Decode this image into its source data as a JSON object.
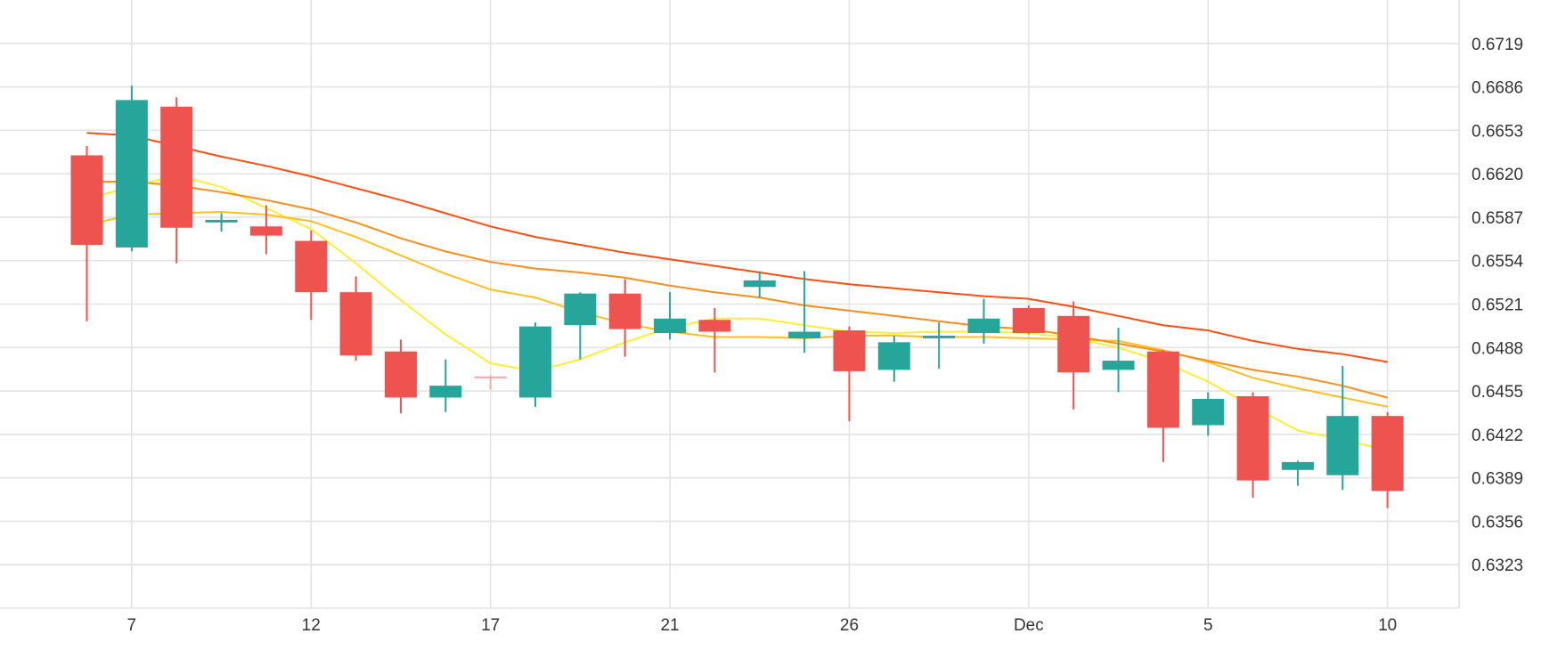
{
  "chart_data": {
    "type": "candlestick",
    "title": "",
    "xlabel": "",
    "ylabel": "",
    "ylim": [
      0.629,
      0.6752
    ],
    "y_ticks": [
      0.6323,
      0.6356,
      0.6389,
      0.6422,
      0.6455,
      0.6488,
      0.6521,
      0.6554,
      0.6587,
      0.662,
      0.6653,
      0.6686,
      0.6719
    ],
    "y_tick_labels": [
      "0.6323",
      "0.6356",
      "0.6389",
      "0.6422",
      "0.6455",
      "0.6488",
      "0.6521",
      "0.6554",
      "0.6587",
      "0.6620",
      "0.6653",
      "0.6686",
      "0.6719"
    ],
    "x_ticks": [
      {
        "label": "7",
        "index": 1
      },
      {
        "label": "12",
        "index": 5
      },
      {
        "label": "17",
        "index": 9
      },
      {
        "label": "21",
        "index": 13
      },
      {
        "label": "26",
        "index": 17
      },
      {
        "label": "Dec",
        "index": 21
      },
      {
        "label": "5",
        "index": 25
      },
      {
        "label": "10",
        "index": 29
      }
    ],
    "grid": true,
    "colors": {
      "up": "#26a69a",
      "down": "#ef5350",
      "doji": "#f4a7a6"
    },
    "candles": [
      {
        "o": 0.6634,
        "h": 0.6641,
        "l": 0.6508,
        "c": 0.6566
      },
      {
        "o": 0.6564,
        "h": 0.6687,
        "l": 0.6561,
        "c": 0.6676
      },
      {
        "o": 0.6671,
        "h": 0.6678,
        "l": 0.6552,
        "c": 0.6579
      },
      {
        "o": 0.6583,
        "h": 0.659,
        "l": 0.6576,
        "c": 0.6585
      },
      {
        "o": 0.658,
        "h": 0.6596,
        "l": 0.6559,
        "c": 0.6573
      },
      {
        "o": 0.6569,
        "h": 0.6577,
        "l": 0.6509,
        "c": 0.653
      },
      {
        "o": 0.653,
        "h": 0.6542,
        "l": 0.6478,
        "c": 0.6482
      },
      {
        "o": 0.6485,
        "h": 0.6494,
        "l": 0.6438,
        "c": 0.645
      },
      {
        "o": 0.645,
        "h": 0.6479,
        "l": 0.6439,
        "c": 0.6459
      },
      {
        "o": 0.6466,
        "h": 0.6467,
        "l": 0.6456,
        "c": 0.6466
      },
      {
        "o": 0.645,
        "h": 0.6507,
        "l": 0.6443,
        "c": 0.6504
      },
      {
        "o": 0.6505,
        "h": 0.653,
        "l": 0.6479,
        "c": 0.6529
      },
      {
        "o": 0.6529,
        "h": 0.654,
        "l": 0.6481,
        "c": 0.6502
      },
      {
        "o": 0.6499,
        "h": 0.653,
        "l": 0.6494,
        "c": 0.651
      },
      {
        "o": 0.6509,
        "h": 0.6518,
        "l": 0.6469,
        "c": 0.65
      },
      {
        "o": 0.6534,
        "h": 0.6546,
        "l": 0.6526,
        "c": 0.6539
      },
      {
        "o": 0.6495,
        "h": 0.6546,
        "l": 0.6484,
        "c": 0.65
      },
      {
        "o": 0.6501,
        "h": 0.6504,
        "l": 0.6432,
        "c": 0.647
      },
      {
        "o": 0.6471,
        "h": 0.6497,
        "l": 0.6462,
        "c": 0.6492
      },
      {
        "o": 0.6495,
        "h": 0.6507,
        "l": 0.6472,
        "c": 0.6497
      },
      {
        "o": 0.6499,
        "h": 0.6525,
        "l": 0.6491,
        "c": 0.651
      },
      {
        "o": 0.6518,
        "h": 0.652,
        "l": 0.6498,
        "c": 0.6499
      },
      {
        "o": 0.6512,
        "h": 0.6523,
        "l": 0.6441,
        "c": 0.6469
      },
      {
        "o": 0.6471,
        "h": 0.6503,
        "l": 0.6454,
        "c": 0.6478
      },
      {
        "o": 0.6485,
        "h": 0.6486,
        "l": 0.6401,
        "c": 0.6427
      },
      {
        "o": 0.6429,
        "h": 0.6454,
        "l": 0.6421,
        "c": 0.6449
      },
      {
        "o": 0.6451,
        "h": 0.6454,
        "l": 0.6374,
        "c": 0.6387
      },
      {
        "o": 0.6395,
        "h": 0.6402,
        "l": 0.6383,
        "c": 0.6401
      },
      {
        "o": 0.6391,
        "h": 0.6474,
        "l": 0.638,
        "c": 0.6436
      },
      {
        "o": 0.6436,
        "h": 0.6439,
        "l": 0.6366,
        "c": 0.6379
      }
    ],
    "moving_averages": [
      {
        "color": "#ffee33",
        "start": 0,
        "values": [
          0.6601,
          0.661,
          0.6619,
          0.661,
          0.6594,
          0.6578,
          0.6552,
          0.6524,
          0.6498,
          0.6476,
          0.647,
          0.6479,
          0.6492,
          0.6503,
          0.651,
          0.651,
          0.6505,
          0.65,
          0.6499,
          0.65,
          0.65,
          0.6499,
          0.6495,
          0.6488,
          0.6477,
          0.6462,
          0.6443,
          0.6425,
          0.6418,
          0.641
        ]
      },
      {
        "color": "#ffbf1f",
        "start": 0,
        "values": [
          0.6581,
          0.6589,
          0.659,
          0.6591,
          0.6589,
          0.6584,
          0.6572,
          0.6558,
          0.6544,
          0.6532,
          0.6526,
          0.6515,
          0.6506,
          0.65,
          0.6496,
          0.6496,
          0.6495,
          0.6497,
          0.6497,
          0.6496,
          0.6496,
          0.6495,
          0.6494,
          0.6493,
          0.6486,
          0.6477,
          0.6465,
          0.6457,
          0.645,
          0.6443
        ]
      },
      {
        "color": "#ff8c1a",
        "start": 0,
        "values": [
          0.6614,
          0.6614,
          0.6611,
          0.6606,
          0.66,
          0.6593,
          0.6583,
          0.6571,
          0.6561,
          0.6553,
          0.6548,
          0.6545,
          0.6541,
          0.6535,
          0.653,
          0.6526,
          0.652,
          0.6516,
          0.6512,
          0.6508,
          0.6504,
          0.6502,
          0.6497,
          0.6491,
          0.6485,
          0.6478,
          0.6471,
          0.6466,
          0.6459,
          0.645
        ]
      },
      {
        "color": "#ff4e10",
        "start": 0,
        "values": [
          0.6651,
          0.6649,
          0.6641,
          0.6633,
          0.6626,
          0.6618,
          0.6609,
          0.66,
          0.659,
          0.658,
          0.6572,
          0.6566,
          0.656,
          0.6555,
          0.655,
          0.6545,
          0.654,
          0.6536,
          0.6533,
          0.653,
          0.6527,
          0.6525,
          0.6519,
          0.6512,
          0.6505,
          0.6501,
          0.6493,
          0.6487,
          0.6483,
          0.6477
        ]
      }
    ]
  }
}
